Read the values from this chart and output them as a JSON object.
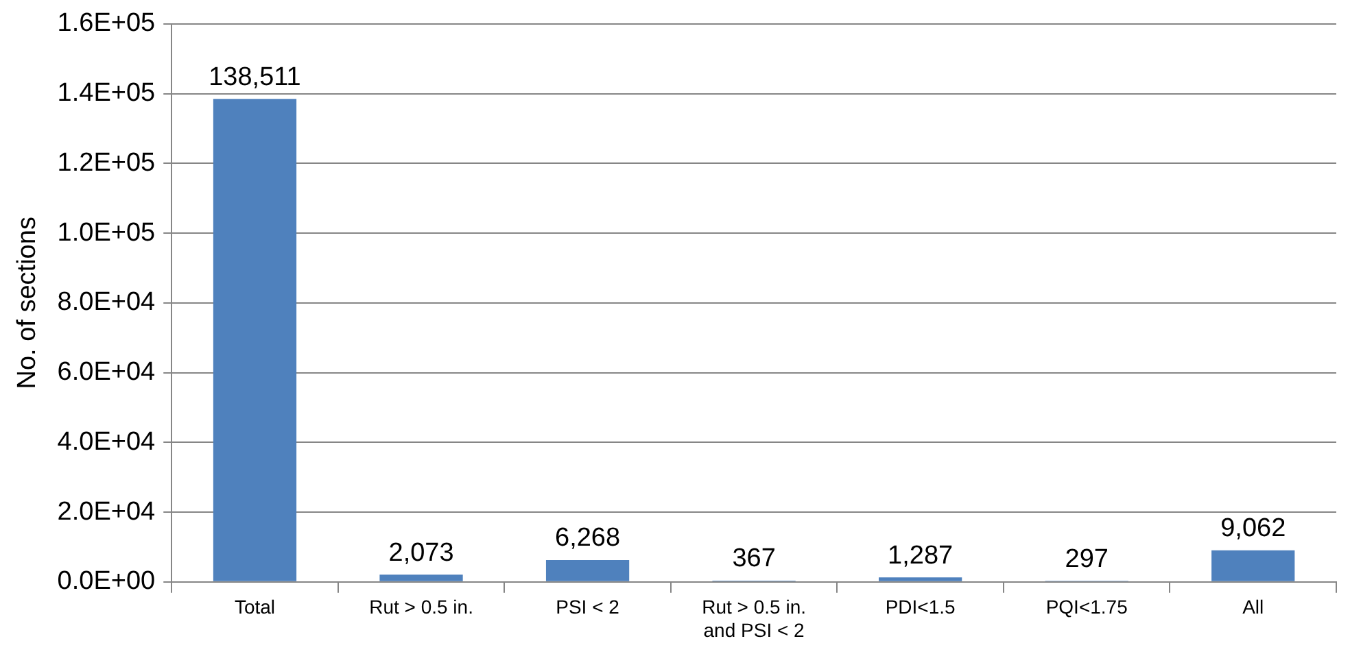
{
  "chart_data": {
    "type": "bar",
    "ylabel": "No. of sections",
    "categories": [
      "Total",
      "Rut > 0.5 in.",
      "PSI < 2",
      "Rut > 0.5 in. and PSI < 2",
      "PDI<1.5",
      "PQI<1.75",
      "All"
    ],
    "values": [
      138511,
      2073,
      6268,
      367,
      1287,
      297,
      9062
    ],
    "value_labels": [
      "138,511",
      "2,073",
      "6,268",
      "367",
      "1,287",
      "297",
      "9,062"
    ],
    "color": "#4f81bd",
    "ylim": [
      0,
      160000
    ],
    "yticks": [
      {
        "value": 0,
        "label": "0.0E+00"
      },
      {
        "value": 20000,
        "label": "2.0E+04"
      },
      {
        "value": 40000,
        "label": "4.0E+04"
      },
      {
        "value": 60000,
        "label": "6.0E+04"
      },
      {
        "value": 80000,
        "label": "8.0E+04"
      },
      {
        "value": 100000,
        "label": "1.0E+05"
      },
      {
        "value": 120000,
        "label": "1.2E+05"
      },
      {
        "value": 140000,
        "label": "1.4E+05"
      },
      {
        "value": 160000,
        "label": "1.6E+05"
      }
    ],
    "grid": "y",
    "legend": false
  }
}
